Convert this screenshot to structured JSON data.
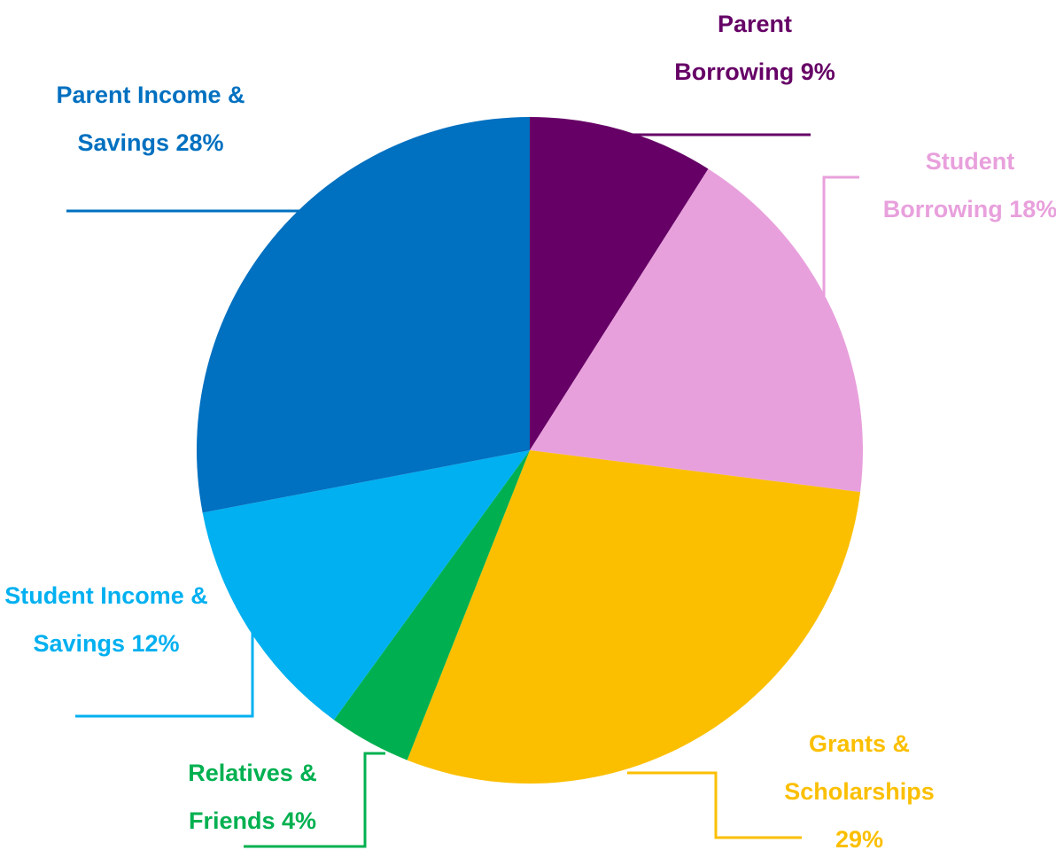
{
  "chart_data": {
    "type": "pie",
    "categories": [
      "Parent Borrowing",
      "Student Borrowing",
      "Grants & Scholarships",
      "Relatives & Friends",
      "Student Income & Savings",
      "Parent Income & Savings"
    ],
    "values": [
      9,
      18,
      29,
      4,
      12,
      28
    ],
    "value_labels": [
      "9%",
      "18%",
      "29%",
      "4%",
      "12%",
      "28%"
    ],
    "colors": [
      "#660066",
      "#e8a0dc",
      "#fbbf00",
      "#00b050",
      "#00b0f0",
      "#0070c0"
    ]
  }
}
